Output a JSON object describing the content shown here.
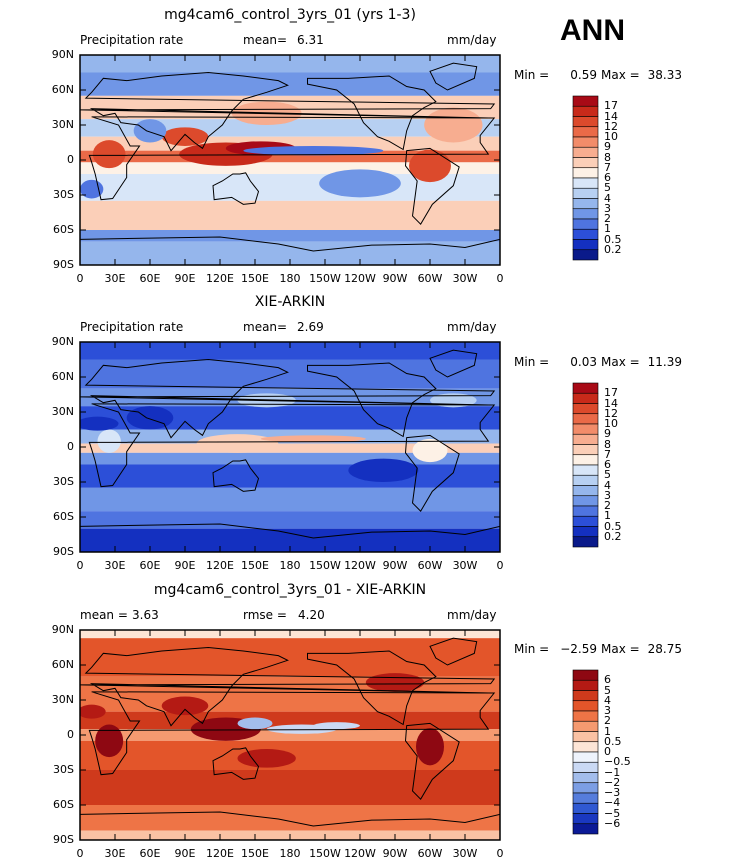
{
  "season": "ANN",
  "lat_ticks": [
    "90N",
    "60N",
    "30N",
    "0",
    "30S",
    "60S",
    "90S"
  ],
  "lon_ticks": [
    "0",
    "30E",
    "60E",
    "90E",
    "120E",
    "150E",
    "180",
    "150W",
    "120W",
    "90W",
    "60W",
    "30W",
    "0"
  ],
  "panels": [
    {
      "title": "mg4cam6_control_3yrs_01 (yrs 1-3)",
      "left_label": "Precipitation rate",
      "stat1_label": "mean=",
      "stat1_value": "6.31",
      "stat2_label": "",
      "stat2_value": "",
      "units": "mm/day",
      "min_label": "Min =",
      "min_value": "0.59",
      "max_label": "Max =",
      "max_value": "38.33",
      "scheme": "abs",
      "levels": [
        "17",
        "14",
        "12",
        "10",
        "9",
        "8",
        "7",
        "6",
        "5",
        "4",
        "3",
        "2",
        "1",
        "0.5",
        "0.2"
      ],
      "colors": [
        "#a80a16",
        "#c82a1a",
        "#dc4a2c",
        "#ea6a48",
        "#f28c6a",
        "#f7ad90",
        "#fbcfb8",
        "#fdf1e6",
        "#d8e6f8",
        "#b7d0f2",
        "#95b6ec",
        "#7096e6",
        "#4f74e0",
        "#2c4fd8",
        "#1430c0",
        "#0a1a8a"
      ]
    },
    {
      "title": "XIE-ARKIN",
      "left_label": "Precipitation rate",
      "stat1_label": "mean=",
      "stat1_value": "2.69",
      "stat2_label": "",
      "stat2_value": "",
      "units": "mm/day",
      "min_label": "Min =",
      "min_value": "0.03",
      "max_label": "Max =",
      "max_value": "11.39",
      "scheme": "obs",
      "levels": [
        "17",
        "14",
        "12",
        "10",
        "9",
        "8",
        "7",
        "6",
        "5",
        "4",
        "3",
        "2",
        "1",
        "0.5",
        "0.2"
      ],
      "colors": [
        "#a80a16",
        "#c82a1a",
        "#dc4a2c",
        "#ea6a48",
        "#f28c6a",
        "#f7ad90",
        "#fbcfb8",
        "#fdf1e6",
        "#d8e6f8",
        "#b7d0f2",
        "#95b6ec",
        "#7096e6",
        "#4f74e0",
        "#2c4fd8",
        "#1430c0",
        "#0a1a8a"
      ]
    },
    {
      "title": "mg4cam6_control_3yrs_01 - XIE-ARKIN",
      "left_label": "",
      "stat1_label": "mean =",
      "stat1_value": "3.63",
      "stat2_label": "rmse =",
      "stat2_value": "4.20",
      "units": "mm/day",
      "min_label": "Min =",
      "min_value": "−2.59",
      "max_label": "Max =",
      "max_value": "28.75",
      "scheme": "diff",
      "levels": [
        "6",
        "5",
        "4",
        "3",
        "2",
        "1",
        "0.5",
        "0",
        "−0.5",
        "−1",
        "−2",
        "−3",
        "−4",
        "−5",
        "−6"
      ],
      "colors": [
        "#8e0812",
        "#b41a14",
        "#cf3a1c",
        "#e3552a",
        "#ee7446",
        "#f59a70",
        "#fac2a4",
        "#fde5d6",
        "#eef3fc",
        "#cad9f4",
        "#a3bdec",
        "#7c9ee4",
        "#567ddc",
        "#3059d2",
        "#1a38c0",
        "#0b1a96"
      ]
    }
  ]
}
